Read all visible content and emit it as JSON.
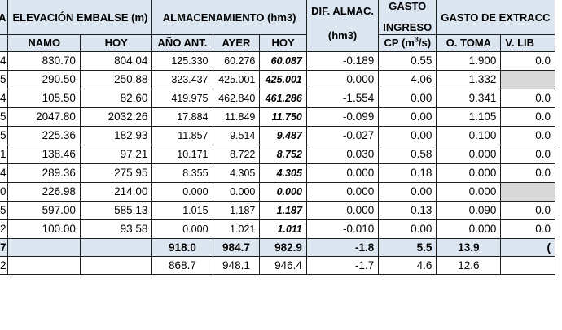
{
  "header": {
    "first_col_partial": "A",
    "elevacion": "ELEVACIÓN EMBALSE (m)",
    "almacenamiento": "ALMACENAMIENTO (hm3)",
    "dif_almac": "DIF. ALMAC.",
    "dif_almac_unit": "(hm3)",
    "gasto": "GASTO",
    "ingreso": "INGRESO",
    "gasto_extraccion": "GASTO DE EXTRACC",
    "cp_label": "CP (m",
    "cp_exp": "3",
    "cp_tail": "/s)"
  },
  "subheaders": {
    "namo": "NAMO",
    "hoy_elev": "HOY",
    "ano_ant": "AÑO ANT.",
    "ayer": "AYER",
    "hoy_alm": "HOY",
    "o_toma": "O. TOMA",
    "v_libre": "V. LIB"
  },
  "rows": [
    {
      "id": "4",
      "namo": "830.70",
      "hoy": "804.04",
      "ano_ant": "125.330",
      "ayer": "60.276",
      "hoy_alm": "60.087",
      "dif": "-0.189",
      "cp": "0.55",
      "toma": "1.900",
      "vlib": "0.0"
    },
    {
      "id": "5",
      "namo": "290.50",
      "hoy": "250.88",
      "ano_ant": "323.437",
      "ayer": "425.001",
      "hoy_alm": "425.001",
      "dif": "0.000",
      "cp": "4.06",
      "toma": "1.332",
      "vlib": ""
    },
    {
      "id": "4",
      "namo": "105.50",
      "hoy": "82.60",
      "ano_ant": "419.975",
      "ayer": "462.840",
      "hoy_alm": "461.286",
      "dif": "-1.554",
      "cp": "0.00",
      "toma": "9.341",
      "vlib": "0.0"
    },
    {
      "id": "5",
      "namo": "2047.80",
      "hoy": "2032.26",
      "ano_ant": "17.884",
      "ayer": "11.849",
      "hoy_alm": "11.750",
      "dif": "-0.099",
      "cp": "0.00",
      "toma": "1.105",
      "vlib": "0.0"
    },
    {
      "id": "5",
      "namo": "225.36",
      "hoy": "182.93",
      "ano_ant": "11.857",
      "ayer": "9.514",
      "hoy_alm": "9.487",
      "dif": "-0.027",
      "cp": "0.00",
      "toma": "0.100",
      "vlib": "0.0"
    },
    {
      "id": "1",
      "namo": "138.46",
      "hoy": "97.21",
      "ano_ant": "10.171",
      "ayer": "8.722",
      "hoy_alm": "8.752",
      "dif": "0.030",
      "cp": "0.58",
      "toma": "0.000",
      "vlib": "0.0"
    },
    {
      "id": "4",
      "namo": "289.36",
      "hoy": "275.95",
      "ano_ant": "8.355",
      "ayer": "4.305",
      "hoy_alm": "4.305",
      "dif": "0.000",
      "cp": "0.18",
      "toma": "0.000",
      "vlib": "0.0"
    },
    {
      "id": "0",
      "namo": "226.98",
      "hoy": "214.00",
      "ano_ant": "0.000",
      "ayer": "0.000",
      "hoy_alm": "0.000",
      "dif": "0.000",
      "cp": "0.00",
      "toma": "0.000",
      "vlib": ""
    },
    {
      "id": "5",
      "namo": "597.00",
      "hoy": "585.13",
      "ano_ant": "1.015",
      "ayer": "1.187",
      "hoy_alm": "1.187",
      "dif": "0.000",
      "cp": "0.13",
      "toma": "0.090",
      "vlib": "0.0"
    },
    {
      "id": "2",
      "namo": "100.00",
      "hoy": "93.58",
      "ano_ant": "0.000",
      "ayer": "1.021",
      "hoy_alm": "1.011",
      "dif": "-0.010",
      "cp": "0.00",
      "toma": "0.000",
      "vlib": "0.0"
    }
  ],
  "total": {
    "id": "7",
    "ano_ant": "918.0",
    "ayer": "984.7",
    "hoy_alm": "982.9",
    "dif": "-1.8",
    "cp": "5.5",
    "toma": "13.9",
    "vlib": "("
  },
  "previous": {
    "id": "2",
    "ano_ant": "868.7",
    "ayer": "948.1",
    "hoy_alm": "946.4",
    "dif": "-1.7",
    "cp": "4.6",
    "toma": "12.6",
    "vlib": ""
  }
}
